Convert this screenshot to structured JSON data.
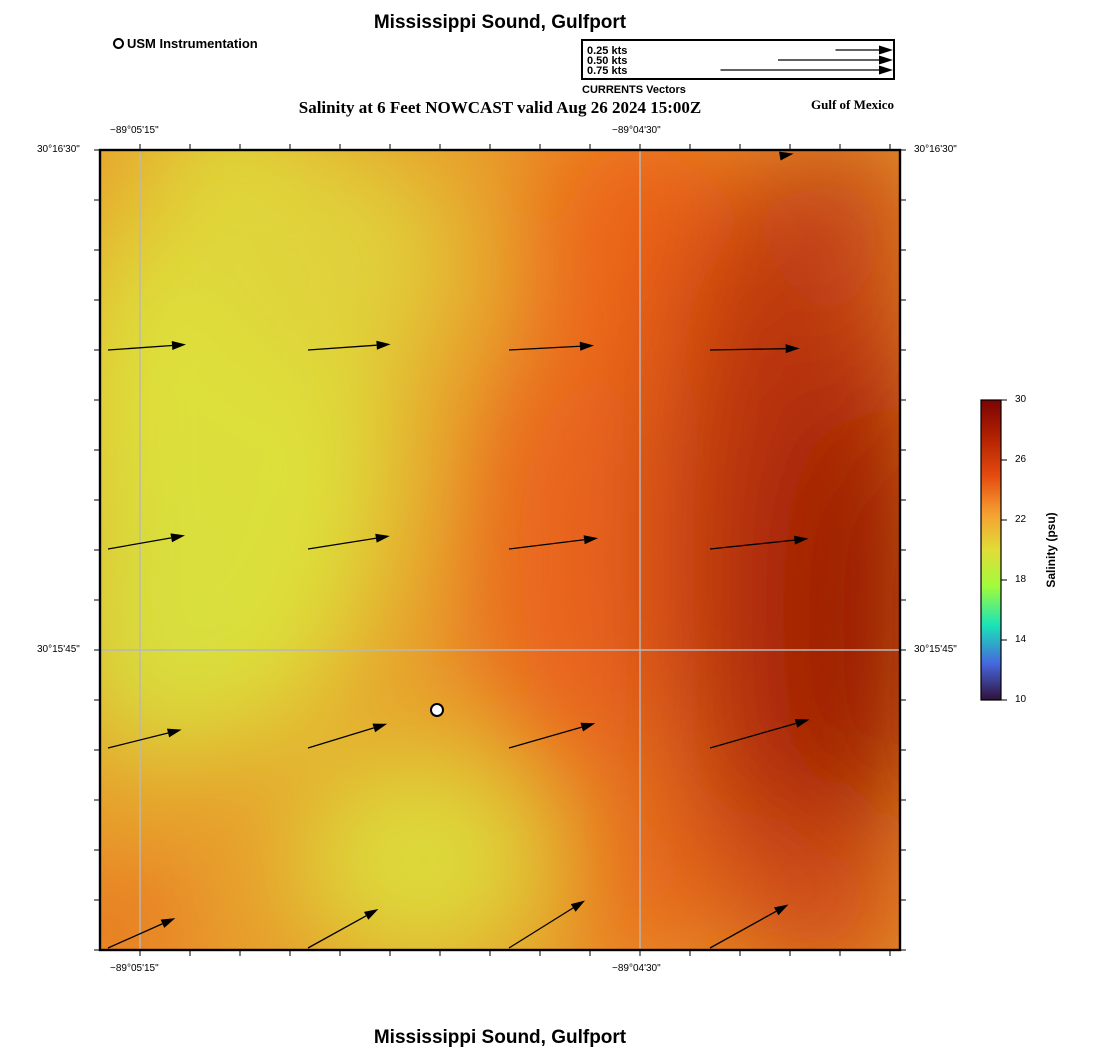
{
  "title_top": "Mississippi Sound, Gulfport",
  "title_bottom": "Mississippi Sound, Gulfport",
  "subtitle": "Salinity at 6 Feet NOWCAST valid Aug 26 2024 15:00Z",
  "region_label": "Gulf of Mexico",
  "station_legend": "USM Instrumentation",
  "vector_legend": {
    "title": "CURRENTS Vectors",
    "entries": [
      {
        "label": "0.25 kts",
        "speed_kts": 0.25
      },
      {
        "label": "0.50 kts",
        "speed_kts": 0.5
      },
      {
        "label": "0.75 kts",
        "speed_kts": 0.75
      }
    ]
  },
  "axes": {
    "lon_ticks": [
      "−89°05'15\"",
      "−89°04'30\""
    ],
    "lat_ticks": [
      "30°16'30\"",
      "30°15'45\""
    ]
  },
  "colorbar": {
    "title": "Salinity (psu)",
    "ticks": [
      "30",
      "26",
      "22",
      "18",
      "14",
      "10"
    ],
    "range": [
      10,
      30
    ],
    "colors": [
      "#30123b",
      "#4666dd",
      "#1ae4b6",
      "#a2fc3c",
      "#e1dd37",
      "#f6a031",
      "#e44a0f",
      "#b02001",
      "#7a0403"
    ]
  },
  "station": {
    "name": "USM Instrumentation"
  },
  "current_vectors": [
    {
      "speed_kts": 0.34,
      "dir_deg": 86
    },
    {
      "speed_kts": 0.36,
      "dir_deg": 86
    },
    {
      "speed_kts": 0.37,
      "dir_deg": 87
    },
    {
      "speed_kts": 0.39,
      "dir_deg": 89
    },
    {
      "speed_kts": 0.34,
      "dir_deg": 80
    },
    {
      "speed_kts": 0.36,
      "dir_deg": 81
    },
    {
      "speed_kts": 0.39,
      "dir_deg": 83
    },
    {
      "speed_kts": 0.43,
      "dir_deg": 84
    },
    {
      "speed_kts": 0.33,
      "dir_deg": 76
    },
    {
      "speed_kts": 0.36,
      "dir_deg": 73
    },
    {
      "speed_kts": 0.39,
      "dir_deg": 74
    },
    {
      "speed_kts": 0.45,
      "dir_deg": 74
    },
    {
      "speed_kts": 0.32,
      "dir_deg": 66
    },
    {
      "speed_kts": 0.35,
      "dir_deg": 61
    },
    {
      "speed_kts": 0.39,
      "dir_deg": 58
    },
    {
      "speed_kts": 0.39,
      "dir_deg": 61
    },
    {
      "speed_kts": 0.06,
      "dir_deg": 80
    }
  ]
}
